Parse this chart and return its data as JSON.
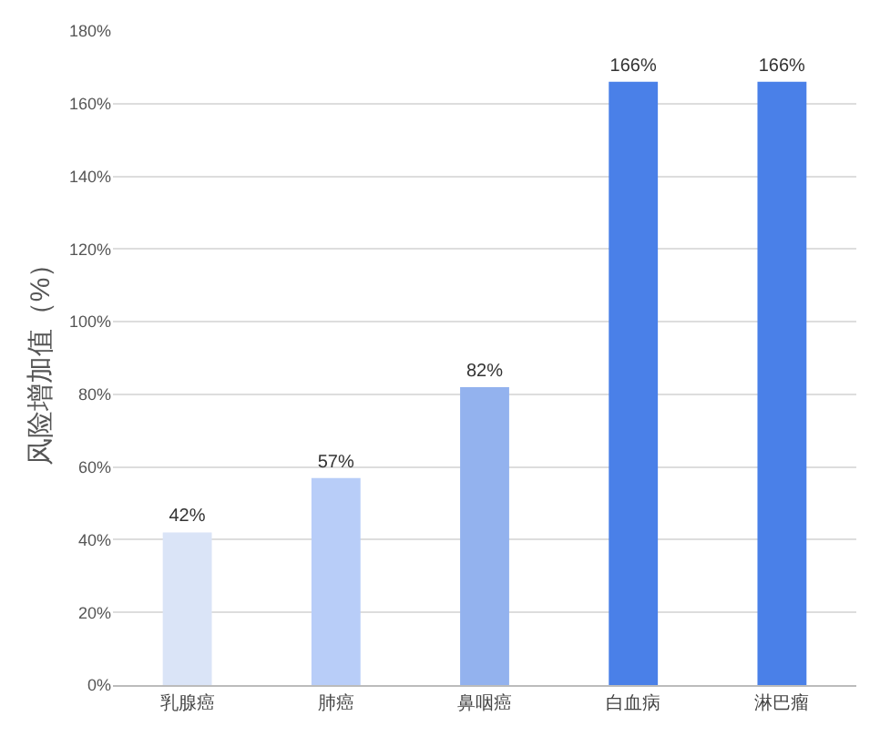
{
  "chart_data": {
    "type": "bar",
    "ylabel": "风险增加值（%）",
    "categories": [
      "乳腺癌",
      "肺癌",
      "鼻咽癌",
      "白血病",
      "淋巴瘤"
    ],
    "values": [
      42,
      57,
      82,
      166,
      166
    ],
    "value_labels": [
      "42%",
      "57%",
      "82%",
      "166%",
      "166%"
    ],
    "colors": [
      "#dae4f7",
      "#b8cdf8",
      "#93b2ee",
      "#4a80e8",
      "#4a80e8"
    ],
    "ylim": [
      0,
      180
    ],
    "yticks": [
      {
        "value": 0,
        "label": "0%"
      },
      {
        "value": 20,
        "label": "20%"
      },
      {
        "value": 40,
        "label": "40%"
      },
      {
        "value": 60,
        "label": "60%"
      },
      {
        "value": 80,
        "label": "80%"
      },
      {
        "value": 100,
        "label": "100%"
      },
      {
        "value": 120,
        "label": "120%"
      },
      {
        "value": 140,
        "label": "140%"
      },
      {
        "value": 160,
        "label": "160%"
      },
      {
        "value": 180,
        "label": "180%"
      }
    ],
    "grid": "y"
  }
}
